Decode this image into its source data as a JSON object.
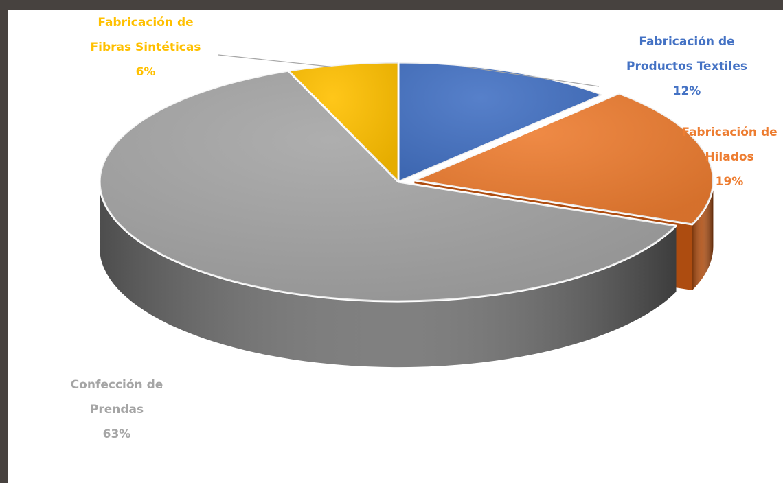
{
  "colors": {
    "background": "#47423f",
    "panel": "#ffffff"
  },
  "chart_data": {
    "type": "pie",
    "style": "3d",
    "title": "",
    "slices": [
      {
        "name": "Fabricación de Productos Textiles",
        "label_lines": [
          "Fabricación de",
          "Productos Textiles"
        ],
        "value": 12,
        "value_label": "12%",
        "color": "#4472c4",
        "side": "#2c4d8a",
        "label_color": "#4472c4",
        "exploded": false
      },
      {
        "name": "Fabricación de Hilados",
        "label_lines": [
          "Fabricación de",
          "Hilados"
        ],
        "value": 19,
        "value_label": "19%",
        "color": "#ed7d31",
        "side": "#ad4c10",
        "label_color": "#ed7d31",
        "exploded": true
      },
      {
        "name": "Confección de Prendas",
        "label_lines": [
          "Confección de",
          "Prendas"
        ],
        "value": 63,
        "value_label": "63%",
        "color": "#a5a5a5",
        "side": "#6e6e6e",
        "label_color": "#a5a5a5",
        "exploded": false
      },
      {
        "name": "Fabricación de Fibras Sintéticas",
        "label_lines": [
          "Fabricación de",
          "Fibras Sintéticas"
        ],
        "value": 6,
        "value_label": "6%",
        "color": "#ffc000",
        "side": "#b78a00",
        "label_color": "#ffc000",
        "exploded": false
      }
    ]
  }
}
